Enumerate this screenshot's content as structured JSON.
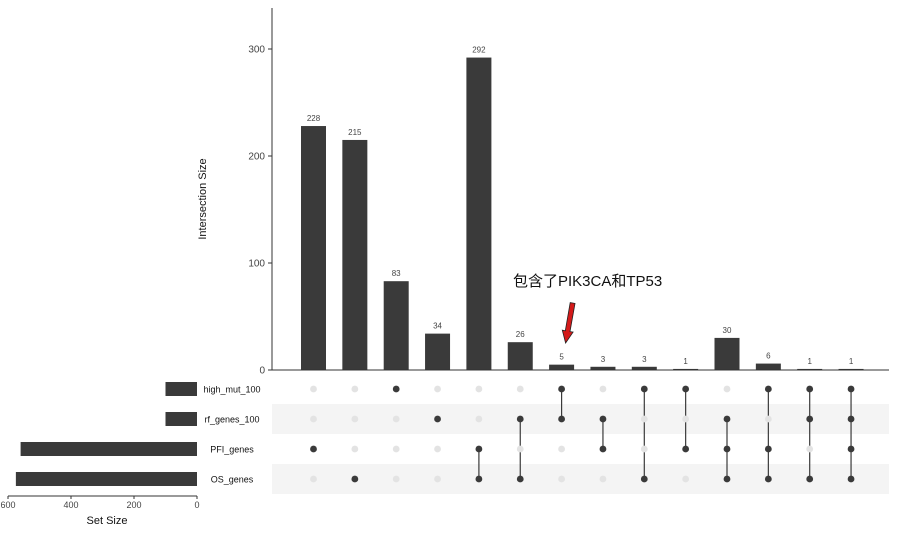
{
  "chart_data": {
    "type": "upset",
    "ylabel": "Intersection Size",
    "ylim": [
      0,
      340
    ],
    "yticks": [
      0,
      100,
      200,
      300
    ],
    "set_size_label": "Set Size",
    "set_size_ticks": [
      600,
      400,
      200,
      0
    ],
    "set_size_lim": [
      0,
      600
    ],
    "sets": [
      {
        "name": "high_mut_100",
        "size": 100
      },
      {
        "name": "rf_genes_100",
        "size": 100
      },
      {
        "name": "PFI_genes",
        "size": 560
      },
      {
        "name": "OS_genes",
        "size": 575
      }
    ],
    "intersections": [
      {
        "value": 228,
        "members": [
          2
        ]
      },
      {
        "value": 215,
        "members": [
          3
        ]
      },
      {
        "value": 83,
        "members": [
          0
        ]
      },
      {
        "value": 34,
        "members": [
          1
        ]
      },
      {
        "value": 292,
        "members": [
          2,
          3
        ]
      },
      {
        "value": 26,
        "members": [
          1,
          3
        ]
      },
      {
        "value": 5,
        "members": [
          0,
          1
        ]
      },
      {
        "value": 3,
        "members": [
          1,
          2
        ]
      },
      {
        "value": 3,
        "members": [
          0,
          3
        ]
      },
      {
        "value": 1,
        "members": [
          0,
          2
        ]
      },
      {
        "value": 30,
        "members": [
          1,
          2,
          3
        ]
      },
      {
        "value": 6,
        "members": [
          0,
          2,
          3
        ]
      },
      {
        "value": 1,
        "members": [
          0,
          1,
          3
        ]
      },
      {
        "value": 1,
        "members": [
          0,
          1,
          2,
          3
        ]
      }
    ],
    "annotation": {
      "text": "包含了PIK3CA和TP53",
      "target_index": 6
    },
    "colors": {
      "bar": "#3a3a3a",
      "dot_on": "#3a3a3a",
      "dot_off": "#e3e3e3",
      "stripe": "#f4f4f4",
      "arrow": "#d41a1a"
    }
  }
}
